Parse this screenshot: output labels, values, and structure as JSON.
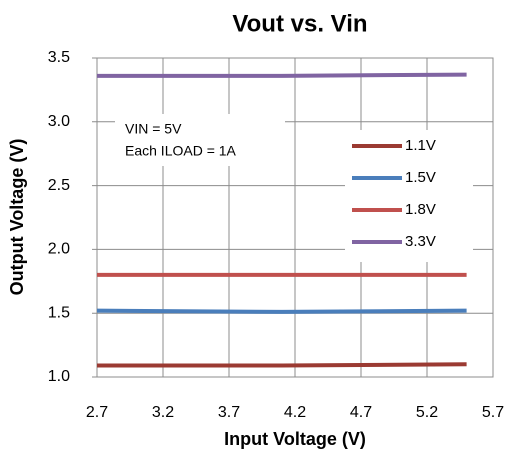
{
  "chart_data": {
    "type": "line",
    "title": "Vout vs. Vin",
    "xlabel": "Input Voltage (V)",
    "ylabel": "Output Voltage (V)",
    "annotations": [
      "VIN = 5V",
      "Each ILOAD = 1A"
    ],
    "x": [
      2.7,
      4.1,
      5.5
    ],
    "series": [
      {
        "name": "1.1V",
        "color": "#9b3a32",
        "values": [
          1.09,
          1.09,
          1.1
        ]
      },
      {
        "name": "1.5V",
        "color": "#4a7ebb",
        "values": [
          1.52,
          1.51,
          1.52
        ]
      },
      {
        "name": "1.8V",
        "color": "#c0504d",
        "values": [
          1.8,
          1.8,
          1.8
        ]
      },
      {
        "name": "3.3V",
        "color": "#8064a2",
        "values": [
          3.36,
          3.36,
          3.37
        ]
      }
    ],
    "xlim": [
      2.7,
      5.7
    ],
    "xticks": [
      2.7,
      3.2,
      3.7,
      4.2,
      4.7,
      5.2,
      5.7
    ],
    "ylim": [
      1,
      3.5
    ],
    "yticks": [
      {
        "value": 1,
        "label": "1.0"
      },
      1.5,
      {
        "value": 2,
        "label": "2.0"
      },
      2.5,
      {
        "value": 3,
        "label": "3.0"
      },
      3.5
    ],
    "grid": true,
    "legend": "right"
  }
}
